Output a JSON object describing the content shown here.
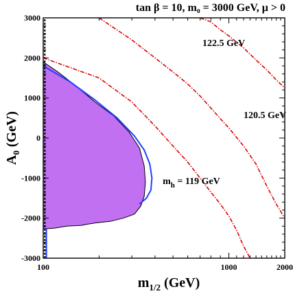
{
  "chart_data": {
    "type": "line",
    "title": "tan β = 10, m₀ = 3000 GeV, μ > 0",
    "xlabel": "m",
    "xlabel_sub": "1/2",
    "xlabel_unit": " (GeV)",
    "ylabel": "A",
    "ylabel_sub": "0",
    "ylabel_unit": " (GeV)",
    "xscale": "log",
    "xlim": [
      100,
      2000
    ],
    "ylim": [
      -3000,
      3000
    ],
    "x_ticks": [
      {
        "value": 100,
        "label": "100"
      },
      {
        "value": 1000,
        "label": "1000"
      },
      {
        "value": 2000,
        "label": "2000"
      }
    ],
    "x_minor_ticks": [
      200,
      300,
      400,
      500,
      600,
      700,
      800,
      900,
      1100,
      1200,
      1300,
      1400,
      1500,
      1600,
      1700,
      1800,
      1900
    ],
    "y_ticks": [
      {
        "value": -3000,
        "label": "-3000"
      },
      {
        "value": -2000,
        "label": "-2000"
      },
      {
        "value": -1000,
        "label": "-1000"
      },
      {
        "value": 0,
        "label": "0"
      },
      {
        "value": 1000,
        "label": "1000"
      },
      {
        "value": 2000,
        "label": "2000"
      },
      {
        "value": 3000,
        "label": "3000"
      }
    ],
    "y_minor_step": 200,
    "grid": false,
    "regions": [
      {
        "name": "excluded-region",
        "color": "#c070f0",
        "x": [
          100,
          120,
          150,
          190,
          240,
          290,
          330,
          350,
          355,
          350,
          335,
          310,
          270,
          230,
          190,
          160,
          135,
          115,
          100
        ],
        "y": [
          1900,
          1650,
          1300,
          900,
          550,
          150,
          -250,
          -700,
          -1100,
          -1450,
          -1700,
          -1900,
          -2000,
          -2080,
          -2120,
          -2180,
          -2200,
          -2250,
          -2270
        ]
      }
    ],
    "series": [
      {
        "name": "blue-contour",
        "color": "#1f3fff",
        "style": "solid",
        "x": [
          100,
          140,
          190,
          250,
          310,
          350,
          375,
          385,
          380,
          360,
          330
        ],
        "y": [
          1800,
          1400,
          950,
          500,
          50,
          -300,
          -650,
          -1000,
          -1300,
          -1500,
          -1650
        ]
      },
      {
        "name": "left-boundary-line",
        "color": "#000000",
        "style": "dashed",
        "x": [
          102,
          102
        ],
        "y": [
          -3000,
          3000
        ]
      },
      {
        "name": "blue-vertical-line",
        "color": "#1f3fff",
        "style": "solid",
        "x": [
          104,
          104
        ],
        "y": [
          -3000,
          -2270
        ]
      },
      {
        "name": "m_h = 119 GeV",
        "color": "#dd0000",
        "style": "dashdot",
        "x": [
          100,
          200,
          300,
          400,
          500,
          600,
          700,
          800,
          900,
          1000,
          1100,
          1200,
          1300
        ],
        "y": [
          2000,
          1500,
          900,
          300,
          -200,
          -600,
          -1000,
          -1350,
          -1650,
          -1950,
          -2300,
          -2700,
          -3000
        ]
      },
      {
        "name": "120.5 GeV",
        "color": "#dd0000",
        "style": "dashdot",
        "x": [
          200,
          300,
          400,
          500,
          600,
          700,
          800,
          900,
          1000,
          1200,
          1400,
          1600,
          1800,
          2000
        ],
        "y": [
          3000,
          2450,
          2000,
          1650,
          1350,
          1050,
          750,
          480,
          250,
          -200,
          -650,
          -1200,
          -1650,
          -2000
        ]
      },
      {
        "name": "122.5 GeV",
        "color": "#dd0000",
        "style": "dashdot",
        "x": [
          700,
          800,
          900,
          1000,
          1200,
          1400,
          1600,
          1800,
          2000
        ],
        "y": [
          3000,
          2900,
          2700,
          2550,
          2250,
          1950,
          1700,
          1450,
          1250
        ]
      }
    ],
    "annotations": [
      {
        "text": "122.5 GeV",
        "x": 720,
        "y": 2300
      },
      {
        "text": "120.5 GeV",
        "x": 1200,
        "y": 500
      },
      {
        "text": "m",
        "sub": "h",
        "rest": " = 119 GeV",
        "x": 440,
        "y": -1150
      }
    ]
  }
}
